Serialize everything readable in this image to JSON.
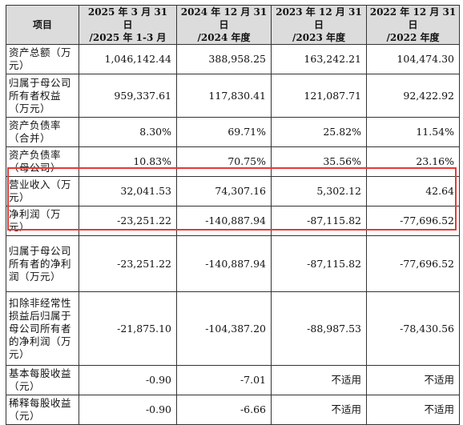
{
  "header": {
    "item": "项目",
    "col1_l1": "2025 年 3 月 31 日",
    "col1_l2": "/2025 年 1-3 月",
    "col2_l1": "2024 年 12 月 31 日",
    "col2_l2": "/2024 年度",
    "col3_l1": "2023 年 12 月 31 日",
    "col3_l2": "/2023 年度",
    "col4_l1": "2022 年 12 月 31 日",
    "col4_l2": "/2022 年度"
  },
  "rows": [
    {
      "label": "资产总额（万元）",
      "v1": "1,046,142.44",
      "v2": "388,958.25",
      "v3": "163,242.21",
      "v4": "104,474.30"
    },
    {
      "label": "归属于母公司所有者权益（万元）",
      "v1": "959,337.61",
      "v2": "117,830.41",
      "v3": "121,087.71",
      "v4": "92,422.92"
    },
    {
      "label": "资产负债率（合并）",
      "v1": "8.30%",
      "v2": "69.71%",
      "v3": "25.82%",
      "v4": "11.54%"
    },
    {
      "label": "资产负债率（母公司）",
      "v1": "10.83%",
      "v2": "70.75%",
      "v3": "35.56%",
      "v4": "23.16%"
    },
    {
      "label": "营业收入（万元）",
      "v1": "32,041.53",
      "v2": "74,307.16",
      "v3": "5,302.12",
      "v4": "42.64"
    },
    {
      "label": "净利润（万元）",
      "v1": "-23,251.22",
      "v2": "-140,887.94",
      "v3": "-87,115.82",
      "v4": "-77,696.52"
    },
    {
      "label": "归属于母公司所有者的净利润（万元）",
      "v1": "-23,251.22",
      "v2": "-140,887.94",
      "v3": "-87,115.82",
      "v4": "-77,696.52"
    },
    {
      "label": "扣除非经常性损益后归属于母公司所有者的净利润（万元）",
      "v1": "-21,875.10",
      "v2": "-104,387.20",
      "v3": "-88,987.53",
      "v4": "-78,430.56"
    },
    {
      "label": "基本每股收益（元）",
      "v1": "-0.90",
      "v2": "-7.01",
      "v3": "不适用",
      "v4": "不适用"
    },
    {
      "label": "稀释每股收益（元）",
      "v1": "-0.90",
      "v2": "-6.66",
      "v3": "不适用",
      "v4": "不适用"
    }
  ],
  "highlight_color": "#e53935"
}
